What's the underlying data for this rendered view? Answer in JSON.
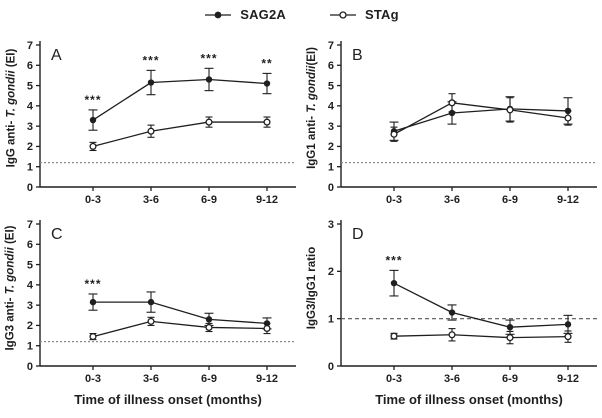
{
  "figure": {
    "legend": [
      {
        "label": "SAG2A",
        "marker": "filled-circle"
      },
      {
        "label": "STAg",
        "marker": "open-circle"
      }
    ],
    "x_axis_title": "Time of illness onset (months)",
    "colors": {
      "line": "#1f1f1f",
      "cutoff": "#8a8a8a",
      "background": "#ffffff"
    }
  },
  "chart_data": [
    {
      "panel": "A",
      "type": "line",
      "ylabel_prefix": "IgG anti- ",
      "ylabel_italic": "T. gondii",
      "ylabel_suffix": " (EI)",
      "categories": [
        "0-3",
        "3-6",
        "6-9",
        "9-12"
      ],
      "ylim": [
        0,
        7
      ],
      "yticks": [
        0,
        1,
        2,
        3,
        4,
        5,
        6,
        7
      ],
      "cutoff_line": 1.2,
      "cutoff_style": "dotted",
      "grid": false,
      "show_x_title": false,
      "series": [
        {
          "name": "SAG2A",
          "marker": "filled",
          "values": [
            3.3,
            5.15,
            5.3,
            5.1
          ],
          "errors": [
            0.5,
            0.6,
            0.55,
            0.5
          ]
        },
        {
          "name": "STAg",
          "marker": "open",
          "values": [
            2.0,
            2.75,
            3.2,
            3.2
          ],
          "errors": [
            0.2,
            0.3,
            0.25,
            0.25
          ]
        }
      ],
      "significance": [
        "***",
        "***",
        "***",
        "**"
      ]
    },
    {
      "panel": "B",
      "type": "line",
      "ylabel_prefix": "IgG1 anti- ",
      "ylabel_italic": "T. gondii",
      "ylabel_suffix": "(EI)",
      "categories": [
        "0-3",
        "3-6",
        "6-9",
        "9-12"
      ],
      "ylim": [
        0,
        7
      ],
      "yticks": [
        0,
        1,
        2,
        3,
        4,
        5,
        6,
        7
      ],
      "cutoff_line": 1.2,
      "cutoff_style": "dotted",
      "grid": false,
      "show_x_title": false,
      "series": [
        {
          "name": "SAG2A",
          "marker": "filled",
          "values": [
            2.75,
            3.65,
            3.85,
            3.75
          ],
          "errors": [
            0.45,
            0.55,
            0.6,
            0.65
          ]
        },
        {
          "name": "STAg",
          "marker": "open",
          "values": [
            2.6,
            4.15,
            3.8,
            3.4
          ],
          "errors": [
            0.35,
            0.45,
            0.6,
            0.35
          ]
        }
      ],
      "significance": [
        "",
        "",
        "",
        ""
      ]
    },
    {
      "panel": "C",
      "type": "line",
      "ylabel_prefix": "IgG3 anti- ",
      "ylabel_italic": "T. gondii",
      "ylabel_suffix": " (EI)",
      "categories": [
        "0-3",
        "3-6",
        "6-9",
        "9-12"
      ],
      "ylim": [
        0,
        7
      ],
      "yticks": [
        0,
        1,
        2,
        3,
        4,
        5,
        6,
        7
      ],
      "cutoff_line": 1.2,
      "cutoff_style": "dotted",
      "grid": false,
      "show_x_title": true,
      "series": [
        {
          "name": "SAG2A",
          "marker": "filled",
          "values": [
            3.15,
            3.15,
            2.3,
            2.1
          ],
          "errors": [
            0.4,
            0.5,
            0.3,
            0.27
          ]
        },
        {
          "name": "STAg",
          "marker": "open",
          "values": [
            1.45,
            2.2,
            1.9,
            1.85
          ],
          "errors": [
            0.15,
            0.2,
            0.2,
            0.25
          ]
        }
      ],
      "significance": [
        "***",
        "",
        "",
        ""
      ]
    },
    {
      "panel": "D",
      "type": "line",
      "ylabel_prefix": "IgG3/IgG1 ratio",
      "ylabel_italic": "",
      "ylabel_suffix": "",
      "categories": [
        "0-3",
        "3-6",
        "6-9",
        "9-12"
      ],
      "ylim": [
        0,
        3
      ],
      "yticks": [
        0,
        1,
        2,
        3
      ],
      "cutoff_line": 1.0,
      "cutoff_style": "dashed",
      "grid": false,
      "show_x_title": true,
      "series": [
        {
          "name": "SAG2A",
          "marker": "filled",
          "values": [
            1.75,
            1.13,
            0.82,
            0.88
          ],
          "errors": [
            0.27,
            0.16,
            0.15,
            0.19
          ]
        },
        {
          "name": "STAg",
          "marker": "open",
          "values": [
            0.63,
            0.66,
            0.6,
            0.62
          ],
          "errors": [
            0.06,
            0.13,
            0.13,
            0.12
          ]
        }
      ],
      "significance": [
        "***",
        "",
        "",
        ""
      ]
    }
  ]
}
